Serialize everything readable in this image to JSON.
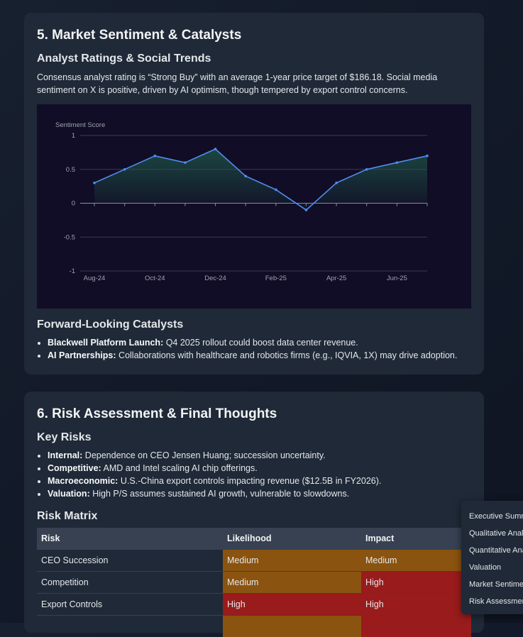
{
  "section5": {
    "title": "5. Market Sentiment & Catalysts",
    "analyst_heading": "Analyst Ratings & Social Trends",
    "analyst_text": "Consensus analyst rating is “Strong Buy” with an average 1-year price target of $186.18. Social media sentiment on X is positive, driven by AI optimism, though tempered by export control concerns.",
    "catalysts_heading": "Forward-Looking Catalysts",
    "catalysts": [
      {
        "label": "Blackwell Platform Launch:",
        "text": " Q4 2025 rollout could boost data center revenue."
      },
      {
        "label": "AI Partnerships:",
        "text": " Collaborations with healthcare and robotics firms (e.g., IQVIA, 1X) may drive adoption."
      }
    ]
  },
  "chart_data": {
    "type": "area",
    "ylabel": "Sentiment Score",
    "ylim": [
      -1,
      1
    ],
    "y_ticks": [
      "1",
      "0.5",
      "0",
      "-0.5",
      "-1"
    ],
    "y_tick_values": [
      1,
      0.5,
      0,
      -0.5,
      -1
    ],
    "x_tick_labels": [
      "Aug-24",
      "Oct-24",
      "Dec-24",
      "Feb-25",
      "Apr-25",
      "Jun-25"
    ],
    "x": [
      "Aug-24",
      "Sep-24",
      "Oct-24",
      "Nov-24",
      "Dec-24",
      "Jan-25",
      "Feb-25",
      "Mar-25",
      "Apr-25",
      "May-25",
      "Jun-25",
      "Jul-25"
    ],
    "values": [
      0.3,
      0.5,
      0.7,
      0.6,
      0.8,
      0.4,
      0.2,
      -0.1,
      0.3,
      0.5,
      0.6,
      0.7
    ],
    "grid": true,
    "line_color": "#4f8cf0",
    "fill_color": "#1f5b4a"
  },
  "section6": {
    "title": "6. Risk Assessment & Final Thoughts",
    "risks_heading": "Key Risks",
    "risks": [
      {
        "label": "Internal:",
        "text": " Dependence on CEO Jensen Huang; succession uncertainty."
      },
      {
        "label": "Competitive:",
        "text": " AMD and Intel scaling AI chip offerings."
      },
      {
        "label": "Macroeconomic:",
        "text": " U.S.-China export controls impacting revenue ($12.5B in FY2026)."
      },
      {
        "label": "Valuation:",
        "text": " High P/S assumes sustained AI growth, vulnerable to slowdowns."
      }
    ],
    "matrix_heading": "Risk Matrix",
    "matrix_columns": [
      "Risk",
      "Likelihood",
      "Impact"
    ],
    "matrix_rows": [
      {
        "risk": "CEO Succession",
        "likelihood": "Medium",
        "impact": "Medium"
      },
      {
        "risk": "Competition",
        "likelihood": "Medium",
        "impact": "High"
      },
      {
        "risk": "Export Controls",
        "likelihood": "High",
        "impact": "High"
      },
      {
        "risk": "",
        "likelihood": "",
        "impact": ""
      }
    ]
  },
  "toc": {
    "items": [
      "Executive Summary",
      "Qualitative Analysis",
      "Quantitative Analysis",
      "Valuation",
      "Market Sentiment",
      "Risk Assessment"
    ]
  }
}
